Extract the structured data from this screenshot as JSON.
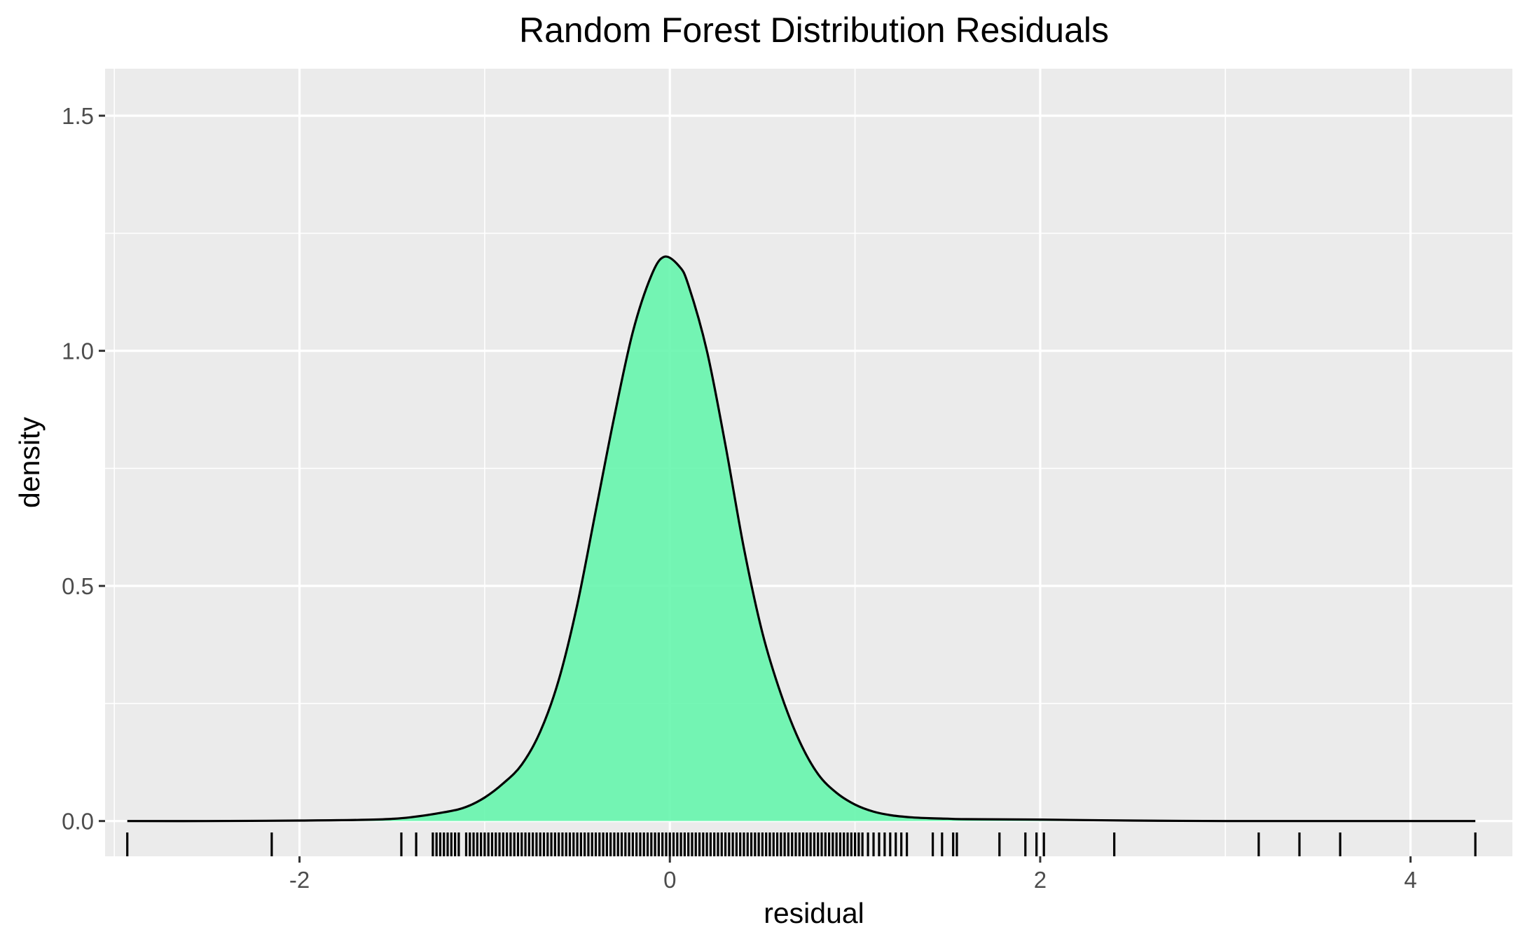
{
  "chart_data": {
    "type": "area",
    "title": "Random Forest Distribution Residuals",
    "xlabel": "residual",
    "ylabel": "density",
    "xlim": [
      -3.05,
      4.55
    ],
    "ylim": [
      -0.075,
      1.6
    ],
    "x_ticks": [
      -2,
      0,
      2,
      4
    ],
    "x_tick_labels": [
      "-2",
      "0",
      "2",
      "4"
    ],
    "y_ticks": [
      0.0,
      0.5,
      1.0,
      1.5
    ],
    "y_tick_labels": [
      "0.0",
      "0.5",
      "1.0",
      "1.5"
    ],
    "grid": true,
    "legend": "none",
    "colors": {
      "panel_background": "#ebebeb",
      "grid": "#ffffff",
      "fill": "#66f5ad",
      "line": "#000000",
      "rug": "#000000"
    },
    "series": [
      {
        "x": [
          -2.93,
          -2.5,
          -2.0,
          -1.6,
          -1.4,
          -1.2,
          -1.1,
          -1.0,
          -0.9,
          -0.8,
          -0.7,
          -0.6,
          -0.5,
          -0.4,
          -0.3,
          -0.2,
          -0.1,
          -0.03,
          0.05,
          0.1,
          0.2,
          0.3,
          0.4,
          0.5,
          0.6,
          0.7,
          0.8,
          0.9,
          1.0,
          1.1,
          1.2,
          1.3,
          1.4,
          1.5,
          1.6,
          2.0,
          2.5,
          3.0,
          3.5,
          4.0,
          4.35
        ],
        "y": [
          0.0,
          0.0,
          0.001,
          0.003,
          0.008,
          0.02,
          0.03,
          0.05,
          0.08,
          0.12,
          0.19,
          0.3,
          0.46,
          0.66,
          0.86,
          1.04,
          1.16,
          1.2,
          1.18,
          1.14,
          1.0,
          0.8,
          0.58,
          0.4,
          0.27,
          0.17,
          0.1,
          0.06,
          0.035,
          0.02,
          0.012,
          0.008,
          0.006,
          0.005,
          0.004,
          0.003,
          0.001,
          0.0,
          0.0,
          0.0,
          0.0
        ]
      }
    ],
    "rug": [
      -2.93,
      -2.15,
      -1.45,
      -1.37,
      -1.28,
      -1.26,
      -1.24,
      -1.22,
      -1.2,
      -1.18,
      -1.16,
      -1.14,
      -1.1,
      -1.08,
      -1.06,
      -1.04,
      -1.02,
      -1.0,
      -0.98,
      -0.96,
      -0.94,
      -0.92,
      -0.9,
      -0.88,
      -0.86,
      -0.84,
      -0.82,
      -0.8,
      -0.78,
      -0.76,
      -0.74,
      -0.72,
      -0.7,
      -0.68,
      -0.66,
      -0.64,
      -0.62,
      -0.6,
      -0.58,
      -0.56,
      -0.54,
      -0.52,
      -0.5,
      -0.48,
      -0.46,
      -0.44,
      -0.42,
      -0.4,
      -0.38,
      -0.36,
      -0.34,
      -0.32,
      -0.3,
      -0.28,
      -0.26,
      -0.24,
      -0.22,
      -0.2,
      -0.18,
      -0.16,
      -0.14,
      -0.12,
      -0.1,
      -0.08,
      -0.06,
      -0.04,
      -0.02,
      0.0,
      0.02,
      0.04,
      0.06,
      0.08,
      0.1,
      0.12,
      0.14,
      0.16,
      0.18,
      0.2,
      0.22,
      0.24,
      0.26,
      0.28,
      0.3,
      0.32,
      0.34,
      0.36,
      0.38,
      0.4,
      0.42,
      0.44,
      0.46,
      0.48,
      0.5,
      0.52,
      0.54,
      0.56,
      0.58,
      0.6,
      0.62,
      0.64,
      0.66,
      0.68,
      0.7,
      0.72,
      0.74,
      0.76,
      0.78,
      0.8,
      0.82,
      0.84,
      0.86,
      0.88,
      0.9,
      0.92,
      0.94,
      0.96,
      0.98,
      1.0,
      1.02,
      1.04,
      1.07,
      1.1,
      1.13,
      1.16,
      1.19,
      1.22,
      1.25,
      1.28,
      1.42,
      1.47,
      1.53,
      1.55,
      1.78,
      1.92,
      1.98,
      2.02,
      2.4,
      3.18,
      3.4,
      3.62,
      4.35
    ]
  }
}
